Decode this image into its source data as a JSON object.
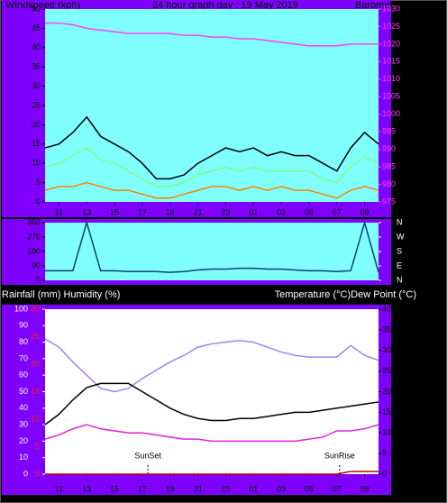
{
  "chart_data": [
    {
      "type": "line",
      "title": "24 hour graph day : 19 May 2019",
      "y_label": "Windspeed (kph)",
      "y2_label": "Barometer (hpa)",
      "background": "#80ffff",
      "x": [
        10,
        11,
        12,
        13,
        14,
        15,
        16,
        17,
        18,
        19,
        20,
        21,
        22,
        23,
        24,
        25,
        26,
        27,
        28,
        29,
        30,
        31,
        32,
        33,
        34
      ],
      "xlim": [
        10,
        34
      ],
      "xticks": [
        11,
        13,
        15,
        17,
        19,
        21,
        23,
        {
          "value": 25,
          "label": "01"
        },
        {
          "value": 27,
          "label": "03"
        },
        {
          "value": 29,
          "label": "05"
        },
        {
          "value": 31,
          "label": "07"
        },
        {
          "value": 33,
          "label": "09"
        }
      ],
      "ylim": [
        0,
        50
      ],
      "yticks": [
        0,
        5,
        10,
        15,
        20,
        25,
        30,
        35,
        40,
        45,
        50
      ],
      "y2lim": [
        975,
        1030
      ],
      "y2ticks": [
        975,
        980,
        985,
        990,
        995,
        1000,
        1005,
        1010,
        1015,
        1020,
        1025,
        1030
      ],
      "series": [
        {
          "color": "#000000",
          "values": [
            14,
            15,
            18,
            22,
            17,
            15,
            13,
            10,
            6,
            6,
            7,
            10,
            12,
            14,
            13,
            14,
            12,
            13,
            12,
            12,
            10,
            8,
            14,
            18,
            15
          ]
        },
        {
          "color": "#80ff80",
          "values": [
            9,
            10,
            12,
            14,
            11,
            10,
            8,
            6,
            4,
            4,
            5,
            7,
            8,
            9,
            8,
            9,
            8,
            8,
            8,
            8,
            6,
            5,
            9,
            12,
            10
          ]
        },
        {
          "color": "#ff8000",
          "values": [
            3,
            4,
            4,
            5,
            4,
            3,
            3,
            2,
            1,
            1,
            2,
            3,
            4,
            4,
            3,
            4,
            3,
            4,
            3,
            3,
            2,
            1,
            3,
            4,
            3
          ]
        },
        {
          "color": "#ff40ff",
          "axis": "y2",
          "values": [
            1026,
            1026,
            1025.5,
            1024.5,
            1024,
            1023.5,
            1023,
            1023,
            1023,
            1023,
            1022.5,
            1022.5,
            1022,
            1022,
            1021.5,
            1021.5,
            1021,
            1020.5,
            1020,
            1019.5,
            1019.5,
            1019.5,
            1020,
            1020,
            1020
          ]
        }
      ]
    },
    {
      "type": "line",
      "background": "#80ffff",
      "x": [
        10,
        11,
        12,
        13,
        14,
        15,
        16,
        17,
        18,
        19,
        20,
        21,
        22,
        23,
        24,
        25,
        26,
        27,
        28,
        29,
        30,
        31,
        32,
        33,
        34
      ],
      "xlim": [
        10,
        34
      ],
      "ylim": [
        0,
        360
      ],
      "yticks": [
        0,
        90,
        180,
        270,
        360
      ],
      "y2lim": [
        0,
        360
      ],
      "y2ticks": [
        {
          "value": 360,
          "label": "N"
        },
        {
          "value": 270,
          "label": "W"
        },
        {
          "value": 180,
          "label": "S"
        },
        {
          "value": 90,
          "label": "E"
        },
        {
          "value": 0,
          "label": "N"
        }
      ],
      "series": [
        {
          "color": "#104070",
          "values": [
            60,
            60,
            60,
            360,
            60,
            60,
            55,
            55,
            55,
            50,
            55,
            65,
            70,
            70,
            75,
            75,
            70,
            70,
            65,
            60,
            60,
            55,
            60,
            360,
            50
          ]
        }
      ]
    },
    {
      "type": "line",
      "y_label": "Rainfall (mm)  Humidity (%)",
      "y2_label": "Temperature (°C)Dew Point (°C)",
      "background": "#ffffff",
      "x": [
        10,
        11,
        12,
        13,
        14,
        15,
        16,
        17,
        18,
        19,
        20,
        21,
        22,
        23,
        24,
        25,
        26,
        27,
        28,
        29,
        30,
        31,
        32,
        33,
        34
      ],
      "xlim": [
        10,
        34
      ],
      "xticks": [
        11,
        13,
        15,
        17,
        19,
        21,
        23,
        {
          "value": 25,
          "label": "01"
        },
        {
          "value": 27,
          "label": "03"
        },
        {
          "value": 29,
          "label": "05"
        },
        {
          "value": 31,
          "label": "07"
        },
        {
          "value": 33,
          "label": "09"
        }
      ],
      "ylim": [
        0,
        100
      ],
      "yticks": [
        0,
        10,
        20,
        30,
        40,
        50,
        60,
        70,
        80,
        90,
        100
      ],
      "y3lim": [
        0,
        30
      ],
      "y3ticks": [
        0,
        5,
        10,
        15,
        20,
        25,
        30
      ],
      "y2lim": [
        0,
        40
      ],
      "y2ticks": [
        0,
        5,
        10,
        15,
        20,
        25,
        30,
        35,
        40
      ],
      "annotations": [
        {
          "text": "SunSet",
          "x": 17.4
        },
        {
          "text": "SunRise",
          "x": 31.2
        }
      ],
      "series": [
        {
          "color": "#a080ff",
          "values": [
            82,
            77,
            68,
            60,
            52,
            50,
            52,
            58,
            63,
            68,
            72,
            77,
            79,
            80,
            81,
            80,
            77,
            74,
            72,
            71,
            71,
            71,
            78,
            72,
            69
          ]
        },
        {
          "color": "#000000",
          "axis": "y2",
          "values": [
            12,
            14.5,
            18,
            21,
            22,
            22,
            22,
            20,
            18,
            16,
            14.5,
            13.5,
            13,
            13,
            13.5,
            13.5,
            14,
            14.5,
            15,
            15,
            15.5,
            16,
            16.5,
            17,
            17.5
          ]
        },
        {
          "color": "#e020e0",
          "axis": "y2",
          "values": [
            8.5,
            9.5,
            11,
            12,
            11,
            10.5,
            10,
            10,
            9.5,
            9,
            8.5,
            8.5,
            8,
            8,
            8,
            8,
            8,
            8,
            8,
            8.5,
            9,
            10.5,
            10.5,
            11,
            12
          ]
        },
        {
          "color": "#c00000",
          "axis": "y3",
          "values": [
            0,
            0,
            0,
            0,
            0,
            0,
            0,
            0,
            0,
            0,
            0,
            0,
            0,
            0,
            0,
            0,
            0,
            0,
            0,
            0,
            0,
            0,
            0.5,
            0.5,
            0.5
          ]
        }
      ]
    }
  ]
}
